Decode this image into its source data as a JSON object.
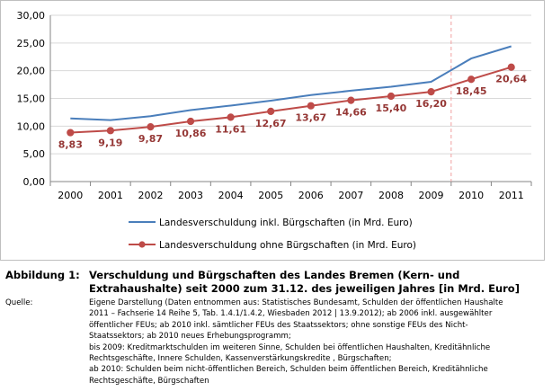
{
  "chart_data": {
    "type": "line",
    "x": [
      "2000",
      "2001",
      "2002",
      "2003",
      "2004",
      "2005",
      "2006",
      "2007",
      "2008",
      "2009",
      "2010",
      "2011"
    ],
    "ylim": [
      0,
      30
    ],
    "yticks": [
      "0,00",
      "5,00",
      "10,00",
      "15,00",
      "20,00",
      "25,00",
      "30,00"
    ],
    "grid": true,
    "vertical_marker_between": [
      "2009",
      "2010"
    ],
    "series": [
      {
        "name": "Landesverschuldung inkl. Bürgschaften (in Mrd. Euro)",
        "color": "#4a7ebb",
        "marker": "none",
        "values": [
          11.4,
          11.1,
          11.8,
          12.9,
          13.7,
          14.6,
          15.6,
          16.4,
          17.1,
          18.0,
          22.2,
          24.4
        ]
      },
      {
        "name": "Landesverschuldung ohne Bürgschaften (in Mrd. Euro)",
        "color": "#be4b48",
        "marker": "circle",
        "values": [
          8.83,
          9.19,
          9.87,
          10.86,
          11.61,
          12.67,
          13.67,
          14.66,
          15.4,
          16.2,
          18.45,
          20.64
        ],
        "data_labels": [
          "8,83",
          "9,19",
          "9,87",
          "10,86",
          "11,61",
          "12,67",
          "13,67",
          "14,66",
          "15,40",
          "16,20",
          "18,45",
          "20,64"
        ]
      }
    ],
    "legend_placement": "bottom"
  },
  "caption": {
    "label": "Abbildung 1:",
    "text": "Verschuldung und Bürgschaften des Landes Bremen (Kern- und Extrahaushalte) seit 2000 zum 31.12. des jeweiligen Jahres [in Mrd. Euro]"
  },
  "source": {
    "label": "Quelle:",
    "lines": [
      "Eigene Darstellung (Daten entnommen aus: Statistisches Bundesamt, Schulden der öffentlichen Haushalte",
      "2011 – Fachserie 14 Reihe 5, Tab. 1.4.1/1.4.2,  Wiesbaden 2012 | 13.9.2012);  ab 2006 inkl. ausgewählter",
      "öffentlicher FEUs; ab 2010 inkl. sämtlicher FEUs des Staatssektors; ohne sonstige FEUs des Nicht-",
      "Staatssektors; ab 2010 neues Erhebungsprogramm;",
      "bis 2009: Kreditmarktschulden im weiteren Sinne, Schulden bei öffentlichen Haushalten, Kreditähnliche",
      "Rechtsgeschäfte, Innere Schulden, Kassenverstärkungskredite , Bürgschaften;",
      "ab 2010: Schulden beim nicht-öffentlichen Bereich, Schulden beim öffentlichen Bereich, Kreditähnliche",
      "Rechtsgeschäfte, Bürgschaften"
    ]
  }
}
